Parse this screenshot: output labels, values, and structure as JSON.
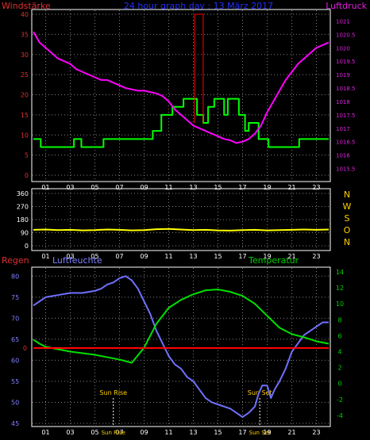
{
  "header": {
    "left_label": "Windstärke",
    "center_label": "24 hour graph day : 13 März 2017",
    "right_label": "Luftdruck"
  },
  "colors": {
    "wind": "#00ff00",
    "pressure": "#ff00ff",
    "gust": "#ff0000",
    "direction": "#ffff00",
    "humidity": "#7070ff",
    "temperature": "#00e000",
    "rain": "#ff0000",
    "frame": "#ffffff",
    "grid": "#808080",
    "left_axis": "#e03030",
    "right_axis": "#e020e0",
    "hum_axis": "#8080ff",
    "temp_axis": "#00d000",
    "compass": "#ffd000",
    "header_center": "#2030ff",
    "bg": "#000000"
  },
  "chart_data": [
    {
      "type": "line",
      "title": "24 hour graph day : 13 März 2017",
      "x_ticks": [
        "01",
        "03",
        "05",
        "07",
        "09",
        "11",
        "13",
        "15",
        "17",
        "19",
        "21",
        "23"
      ],
      "xlim": [
        0,
        24
      ],
      "grid": true,
      "left_axis": {
        "label": "Windstärke",
        "ticks": [
          0,
          5,
          10,
          15,
          20,
          25,
          30,
          35,
          40
        ],
        "lim": [
          0,
          40
        ]
      },
      "right_axis": {
        "label": "Luftdruck",
        "ticks": [
          "1015.5",
          "1016",
          "1016.5",
          "1017",
          "1017.5",
          "1018",
          "1018.5",
          "1019",
          "1019.5",
          "1020",
          "1020.5",
          "1021"
        ],
        "lim": [
          1015.25,
          1021.25
        ]
      },
      "series": [
        {
          "axis": "left",
          "step": true,
          "color_key": "wind",
          "x": [
            0,
            0.6,
            2.8,
            3.3,
            3.9,
            4.5,
            5.7,
            6.4,
            9.7,
            10.4,
            11.3,
            12.2,
            13.3,
            13.8,
            14.2,
            14.7,
            15.5,
            15.8,
            16.7,
            17.2,
            17.5,
            18.3,
            19.1,
            19.8,
            20.5,
            21.6,
            22.2,
            23.0,
            24.0
          ],
          "y": [
            9,
            7,
            7,
            9,
            7,
            7,
            9,
            9,
            11,
            15,
            17,
            19,
            15,
            13,
            17,
            19,
            15,
            19,
            15,
            11,
            13,
            9,
            7,
            7,
            7,
            9,
            9,
            9,
            9
          ]
        },
        {
          "axis": "left",
          "step": true,
          "color_key": "gust",
          "x": [
            13.1,
            13.1,
            13.8,
            13.8
          ],
          "y": [
            13,
            40,
            40,
            13
          ]
        },
        {
          "axis": "right",
          "color_key": "pressure",
          "x": [
            0,
            0.5,
            1,
            1.5,
            2,
            2.5,
            3,
            3.5,
            4,
            4.5,
            5,
            5.5,
            6,
            6.5,
            7,
            7.5,
            8,
            8.5,
            9,
            9.5,
            10,
            10.5,
            11,
            11.5,
            12,
            12.5,
            13,
            13.5,
            14,
            14.5,
            15,
            15.5,
            16,
            16.5,
            17,
            17.5,
            18,
            18.5,
            19,
            19.5,
            20,
            20.5,
            21,
            21.5,
            22,
            22.5,
            23,
            23.5,
            24
          ],
          "y": [
            1020.6,
            1020.2,
            1020.0,
            1019.8,
            1019.6,
            1019.5,
            1019.4,
            1019.2,
            1019.1,
            1019.0,
            1018.9,
            1018.8,
            1018.8,
            1018.7,
            1018.6,
            1018.5,
            1018.45,
            1018.4,
            1018.4,
            1018.35,
            1018.3,
            1018.2,
            1018.0,
            1017.7,
            1017.5,
            1017.3,
            1017.1,
            1017.0,
            1016.9,
            1016.8,
            1016.7,
            1016.6,
            1016.55,
            1016.45,
            1016.5,
            1016.6,
            1016.8,
            1017.1,
            1017.6,
            1018.0,
            1018.4,
            1018.8,
            1019.1,
            1019.4,
            1019.6,
            1019.8,
            1020.0,
            1020.1,
            1020.2
          ]
        }
      ]
    },
    {
      "type": "line",
      "x_ticks": [
        "01",
        "03",
        "05",
        "07",
        "09",
        "11",
        "13",
        "15",
        "17",
        "19",
        "21",
        "23"
      ],
      "xlim": [
        0,
        24
      ],
      "grid": true,
      "left_axis": {
        "ticks": [
          0,
          90,
          180,
          270,
          360
        ],
        "lim": [
          0,
          360
        ]
      },
      "compass_labels": [
        "N",
        "W",
        "S",
        "O",
        "N"
      ],
      "series": [
        {
          "color_key": "direction",
          "x": [
            0,
            1,
            2,
            3,
            4,
            5,
            6,
            7,
            8,
            9,
            10,
            11,
            12,
            13,
            14,
            15,
            16,
            17,
            18,
            19,
            20,
            21,
            22,
            23,
            24
          ],
          "y": [
            110,
            112,
            108,
            110,
            106,
            108,
            112,
            110,
            106,
            108,
            114,
            116,
            112,
            108,
            110,
            106,
            104,
            108,
            110,
            106,
            108,
            110,
            112,
            110,
            112
          ]
        }
      ]
    },
    {
      "type": "line",
      "x_ticks": [
        "01",
        "03",
        "05",
        "07",
        "09",
        "11",
        "13",
        "15",
        "17",
        "19",
        "21",
        "23"
      ],
      "xlim": [
        0,
        24
      ],
      "grid": true,
      "labels": {
        "rain": "Regen",
        "humidity": "Luftfeuchte",
        "temperature": "Temperatur"
      },
      "rain_axis": {
        "ticks": [
          "0"
        ],
        "value": 0
      },
      "humidity_axis": {
        "ticks": [
          45,
          50,
          55,
          60,
          65,
          70,
          75,
          80
        ],
        "lim": [
          45,
          81
        ]
      },
      "temperature_axis": {
        "ticks": [
          -4,
          -2,
          0,
          2,
          4,
          6,
          8,
          10,
          12,
          14
        ],
        "lim": [
          -5,
          14
        ]
      },
      "annotations": [
        {
          "label": "Sun Rise",
          "x": 6.5
        },
        {
          "label": "Sun Set",
          "x": 18.4
        }
      ],
      "bottom_labels": [
        "Sun Rise",
        "Sun Set"
      ],
      "series": [
        {
          "axis": "humidity",
          "color_key": "humidity",
          "x": [
            0,
            0.5,
            1,
            2,
            3,
            4,
            5,
            5.5,
            6,
            6.5,
            7,
            7.5,
            8,
            8.5,
            9,
            9.5,
            10,
            10.5,
            11,
            11.5,
            12,
            12.5,
            13,
            13.5,
            14,
            14.5,
            15,
            15.5,
            16,
            16.5,
            17,
            17.5,
            18,
            18.3,
            18.6,
            19,
            19.3,
            19.6,
            20,
            20.5,
            21,
            21.5,
            22,
            22.5,
            23,
            23.5,
            24
          ],
          "y": [
            73,
            74,
            75,
            75.5,
            76,
            76,
            76.5,
            77,
            78,
            78.5,
            79.5,
            80,
            79,
            77,
            74,
            71,
            67,
            64,
            61,
            59,
            58,
            56,
            55,
            53,
            51,
            50,
            49.5,
            49,
            48.5,
            47.5,
            46.5,
            47.5,
            49,
            52,
            54,
            54,
            51,
            53,
            55,
            58,
            62,
            64,
            66,
            67,
            68,
            69,
            69
          ]
        },
        {
          "axis": "temperature",
          "color_key": "temperature",
          "x": [
            0,
            0.5,
            1,
            2,
            3,
            4,
            5,
            6,
            7,
            8,
            9,
            10,
            11,
            12,
            13,
            14,
            15,
            16,
            17,
            18,
            19,
            20,
            21,
            22,
            23,
            24
          ],
          "y": [
            5.5,
            5.0,
            4.6,
            4.3,
            4.0,
            3.8,
            3.6,
            3.3,
            3.0,
            2.6,
            4.5,
            7.5,
            9.5,
            10.5,
            11.2,
            11.7,
            11.8,
            11.5,
            11.0,
            10.0,
            8.5,
            7.0,
            6.2,
            5.8,
            5.3,
            5.0
          ]
        },
        {
          "axis": "rain",
          "color_key": "rain",
          "x": [
            0,
            24
          ],
          "y": [
            0,
            0
          ]
        }
      ]
    }
  ]
}
